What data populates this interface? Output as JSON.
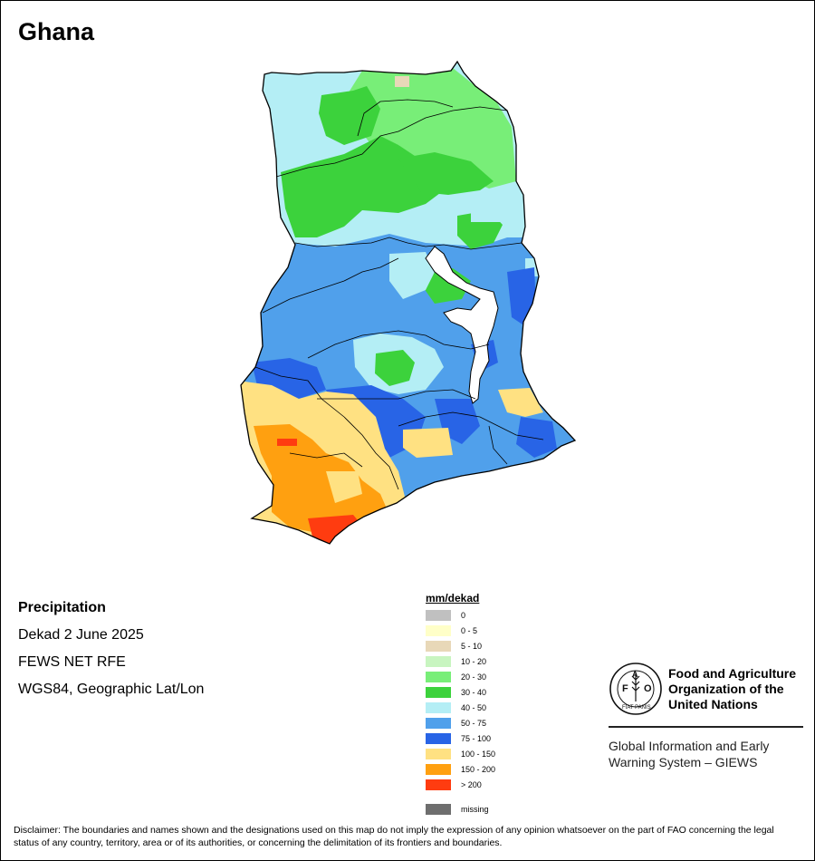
{
  "map": {
    "title": "Ghana",
    "info": {
      "variable": "Precipitation",
      "period": "Dekad 2 June 2025",
      "source": "FEWS NET RFE",
      "projection": "WGS84, Geographic Lat/Lon"
    },
    "legend": {
      "title": "mm/dekad",
      "items": [
        {
          "label": "0",
          "color": "#c0c0c0"
        },
        {
          "label": "0 - 5",
          "color": "#ffffc8"
        },
        {
          "label": "5 - 10",
          "color": "#e8d8b8"
        },
        {
          "label": "10 - 20",
          "color": "#c8f5c0"
        },
        {
          "label": "20 - 30",
          "color": "#78ee78"
        },
        {
          "label": "30 - 40",
          "color": "#3cd23c"
        },
        {
          "label": "40 - 50",
          "color": "#b4eef5"
        },
        {
          "label": "50 - 75",
          "color": "#50a0eb"
        },
        {
          "label": "75 - 100",
          "color": "#2864e6"
        },
        {
          "label": "100 - 150",
          "color": "#ffe182"
        },
        {
          "label": "150 - 200",
          "color": "#ffa010"
        },
        {
          "label": "> 200",
          "color": "#ff3c10"
        }
      ],
      "missing": {
        "label": "missing",
        "color": "#6e6e6e"
      }
    },
    "fao": {
      "logo_text": "FAO",
      "logo_motto": "FIAT PANIS",
      "org_name": "Food and Agriculture\nOrganization of the\nUnited Nations",
      "giews": "Global Information and Early\nWarning System – GIEWS"
    },
    "disclaimer": "Disclaimer: The boundaries and names shown and the designations used on this map do not imply the expression of any opinion whatsoever on the part of FAO concerning the legal status of any country, territory, area or of its authorities, or concerning the delimitation of its frontiers and boundaries."
  }
}
